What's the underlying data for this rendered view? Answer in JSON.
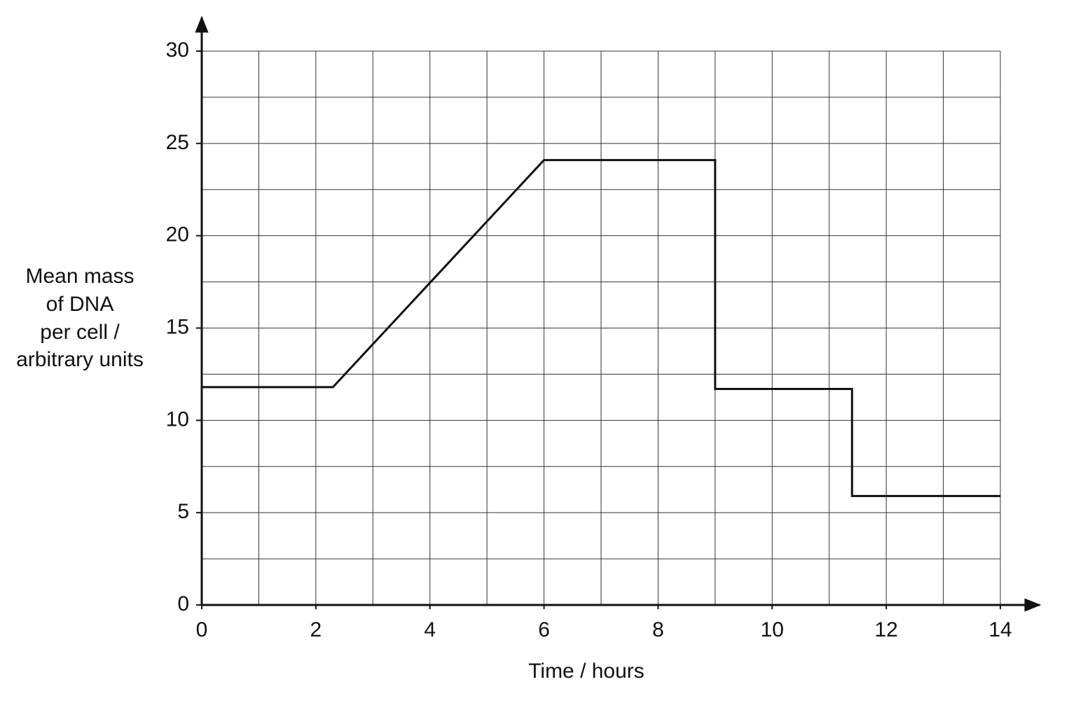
{
  "chart_data": {
    "type": "line",
    "x_label": "Time / hours",
    "y_label": [
      "Mean mass",
      "of DNA",
      "per cell /",
      "arbitrary units"
    ],
    "series": [
      {
        "color": "#111111",
        "x": [
          0,
          2.3,
          6,
          9,
          9,
          11.4,
          11.4,
          14
        ],
        "values": [
          11.8,
          11.8,
          24.1,
          24.1,
          11.7,
          11.7,
          5.9,
          5.9
        ]
      }
    ],
    "xlim": [
      0,
      14
    ],
    "xticks": [
      0,
      2,
      4,
      6,
      8,
      10,
      12,
      14
    ],
    "ylim": [
      0,
      30
    ],
    "yticks": [
      0,
      5,
      10,
      15,
      20,
      25,
      30
    ],
    "grid": true,
    "minor_grid": true
  }
}
